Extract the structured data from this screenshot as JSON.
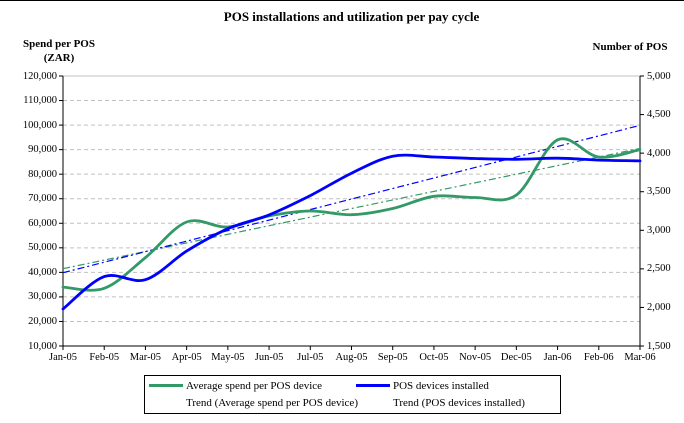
{
  "title": "POS installations and utilization per pay cycle",
  "left_axis": {
    "title_line1": "Spend per POS",
    "title_line2": "(ZAR)"
  },
  "right_axis": {
    "title": "Number of POS"
  },
  "legend": {
    "items": [
      {
        "label": "Average spend per POS device",
        "swatch": "line",
        "color": "#339966"
      },
      {
        "label": "POS devices installed",
        "swatch": "line",
        "color": "#0000ff"
      },
      {
        "label": "Trend (Average spend per POS device)",
        "swatch": "none",
        "color": ""
      },
      {
        "label": "Trend (POS devices installed)",
        "swatch": "none",
        "color": ""
      }
    ]
  },
  "colors": {
    "spend_series": "#339966",
    "pos_series": "#0000ff",
    "gridline": "#c0c0c0",
    "axis": "#000000",
    "background": "#ffffff"
  },
  "chart_data": {
    "type": "line",
    "title": "POS installations and utilization per pay cycle",
    "categories": [
      "Jan-05",
      "Feb-05",
      "Mar-05",
      "Apr-05",
      "May-05",
      "Jun-05",
      "Jul-05",
      "Aug-05",
      "Sep-05",
      "Oct-05",
      "Nov-05",
      "Dec-05",
      "Jan-06",
      "Feb-06",
      "Mar-06"
    ],
    "series": [
      {
        "name": "Average spend per POS device",
        "axis": "left",
        "color": "#339966",
        "style": "smooth",
        "values": [
          34000,
          33500,
          46000,
          60500,
          58500,
          63000,
          65000,
          63500,
          66000,
          71000,
          70500,
          71500,
          94000,
          87000,
          90000
        ]
      },
      {
        "name": "POS devices installed",
        "axis": "right",
        "color": "#0000ff",
        "style": "smooth",
        "values": [
          1980,
          2400,
          2360,
          2730,
          3020,
          3200,
          3450,
          3740,
          3960,
          3950,
          3930,
          3920,
          3935,
          3910,
          3900
        ]
      },
      {
        "name": "Trend (Average spend per POS device)",
        "axis": "left",
        "color": "#339966",
        "style": "dashdot",
        "trend": true,
        "start": 41500,
        "end": 90500
      },
      {
        "name": "Trend (POS devices installed)",
        "axis": "right",
        "color": "#0000ff",
        "style": "dashdot",
        "trend": true,
        "start": 2450,
        "end": 4360
      }
    ],
    "left_ylabel": "Spend per POS (ZAR)",
    "right_ylabel": "Number of POS",
    "left_ylim": [
      10000,
      120000
    ],
    "left_tick_step": 10000,
    "left_tick_labels": [
      "120,000",
      "110,000",
      "100,000",
      "90,000",
      "80,000",
      "70,000",
      "60,000",
      "50,000",
      "40,000",
      "30,000",
      "20,000",
      "10,000"
    ],
    "right_ylim": [
      1500,
      5000
    ],
    "right_tick_step": 500,
    "right_tick_labels": [
      "5,000",
      "4,500",
      "4,000",
      "3,500",
      "3,000",
      "2,500",
      "2,000",
      "1,500"
    ],
    "grid": "horizontal-dashed",
    "legend_position": "bottom"
  }
}
